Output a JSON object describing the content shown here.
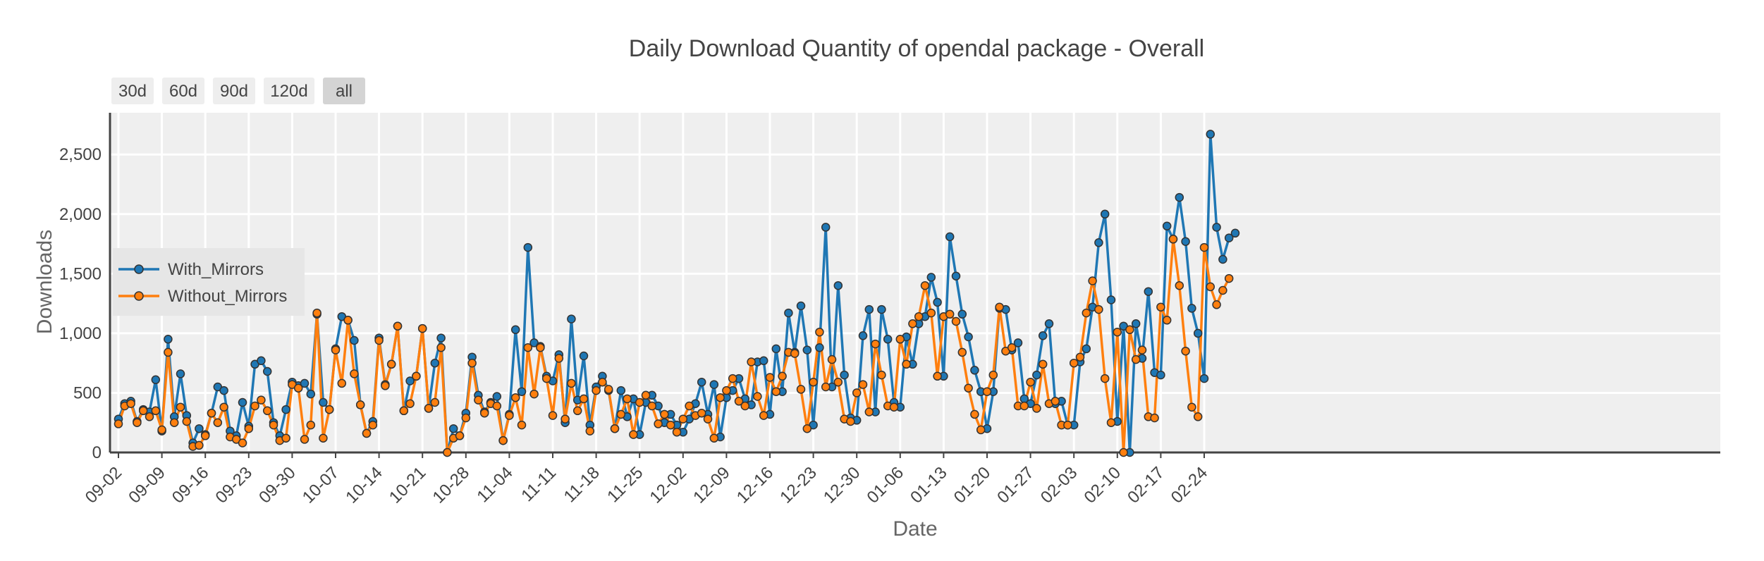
{
  "chart_data": {
    "type": "line",
    "title": "Daily Download Quantity of opendal package - Overall",
    "xlabel": "Date",
    "ylabel": "Downloads",
    "ylim": [
      0,
      2850
    ],
    "yticks": [
      0,
      500,
      1000,
      1500,
      2000,
      2500
    ],
    "ytick_labels": [
      "0",
      "500",
      "1,000",
      "1,500",
      "2,000",
      "2,500"
    ],
    "xtick_labels": [
      "09-02",
      "09-09",
      "09-16",
      "09-23",
      "09-30",
      "10-07",
      "10-14",
      "10-21",
      "10-28",
      "11-04",
      "11-11",
      "11-18",
      "11-25",
      "12-02",
      "12-09",
      "12-16",
      "12-23",
      "12-30",
      "01-06",
      "01-13",
      "01-20",
      "01-27",
      "02-03",
      "02-10",
      "02-17",
      "02-24"
    ],
    "xtick_step_days": 7,
    "start_date": "09-02",
    "grid": true,
    "legend_position": "middle-left",
    "series": [
      {
        "name": "With_Mirrors",
        "color": "#1f77b4",
        "values": [
          280,
          410,
          430,
          260,
          360,
          340,
          610,
          180,
          950,
          300,
          660,
          310,
          80,
          200,
          150,
          330,
          550,
          520,
          180,
          140,
          420,
          220,
          740,
          770,
          680,
          250,
          140,
          360,
          590,
          560,
          580,
          490,
          1160,
          420,
          360,
          870,
          1140,
          1110,
          940,
          400,
          160,
          260,
          960,
          570,
          740,
          1060,
          350,
          600,
          640,
          1040,
          370,
          750,
          960,
          0,
          200,
          140,
          330,
          800,
          480,
          340,
          420,
          470,
          100,
          320,
          1030,
          510,
          1720,
          920,
          890,
          640,
          600,
          820,
          250,
          1120,
          440,
          810,
          230,
          550,
          640,
          520,
          200,
          520,
          300,
          450,
          150,
          420,
          480,
          390,
          250,
          320,
          230,
          170,
          280,
          410,
          590,
          320,
          570,
          130,
          460,
          520,
          620,
          450,
          400,
          760,
          770,
          320,
          870,
          510,
          1170,
          840,
          1230,
          860,
          230,
          880,
          1890,
          550,
          1400,
          650,
          290,
          270,
          980,
          1200,
          340,
          1200,
          950,
          420,
          380,
          970,
          740,
          1080,
          1140,
          1470,
          1260,
          640,
          1810,
          1480,
          1160,
          970,
          690,
          510,
          200,
          510,
          1210,
          1200,
          860,
          920,
          450,
          410,
          650,
          980,
          1080,
          410,
          430,
          230,
          230,
          760,
          870,
          1220,
          1760,
          2000,
          1280,
          260,
          1060,
          0,
          1080,
          790,
          1350,
          670,
          650,
          1900,
          1790,
          2140,
          1770,
          1210,
          1000,
          620,
          2670,
          1890,
          1620,
          1800,
          1840
        ]
      },
      {
        "name": "Without_Mirrors",
        "color": "#ff7f0e",
        "values": [
          240,
          390,
          410,
          250,
          350,
          300,
          350,
          190,
          840,
          250,
          380,
          260,
          50,
          60,
          140,
          330,
          250,
          380,
          130,
          110,
          80,
          200,
          390,
          440,
          350,
          230,
          100,
          120,
          570,
          540,
          110,
          230,
          1170,
          120,
          360,
          860,
          580,
          1110,
          660,
          400,
          160,
          230,
          940,
          560,
          740,
          1060,
          350,
          410,
          640,
          1040,
          370,
          420,
          880,
          0,
          120,
          140,
          290,
          750,
          440,
          330,
          410,
          390,
          100,
          310,
          460,
          230,
          880,
          490,
          880,
          620,
          310,
          790,
          280,
          580,
          350,
          450,
          180,
          520,
          590,
          530,
          200,
          320,
          450,
          150,
          420,
          480,
          390,
          240,
          320,
          230,
          170,
          280,
          390,
          310,
          330,
          280,
          120,
          460,
          520,
          620,
          430,
          390,
          760,
          470,
          310,
          630,
          510,
          640,
          840,
          830,
          530,
          200,
          590,
          1010,
          550,
          780,
          590,
          280,
          260,
          500,
          570,
          340,
          910,
          650,
          390,
          380,
          950,
          740,
          1080,
          1140,
          1400,
          1170,
          640,
          1140,
          1160,
          1100,
          840,
          540,
          320,
          190,
          510,
          650,
          1220,
          850,
          880,
          390,
          390,
          590,
          370,
          740,
          410,
          430,
          230,
          230,
          750,
          800,
          1170,
          1440,
          1200,
          620,
          250,
          1010,
          0,
          1030,
          780,
          860,
          300,
          290,
          1220,
          1110,
          1790,
          1400,
          850,
          380,
          300,
          1720,
          1390,
          1240,
          1360,
          1460
        ]
      }
    ]
  },
  "range_buttons": [
    "30d",
    "60d",
    "90d",
    "120d",
    "all"
  ],
  "range_selected": "all"
}
